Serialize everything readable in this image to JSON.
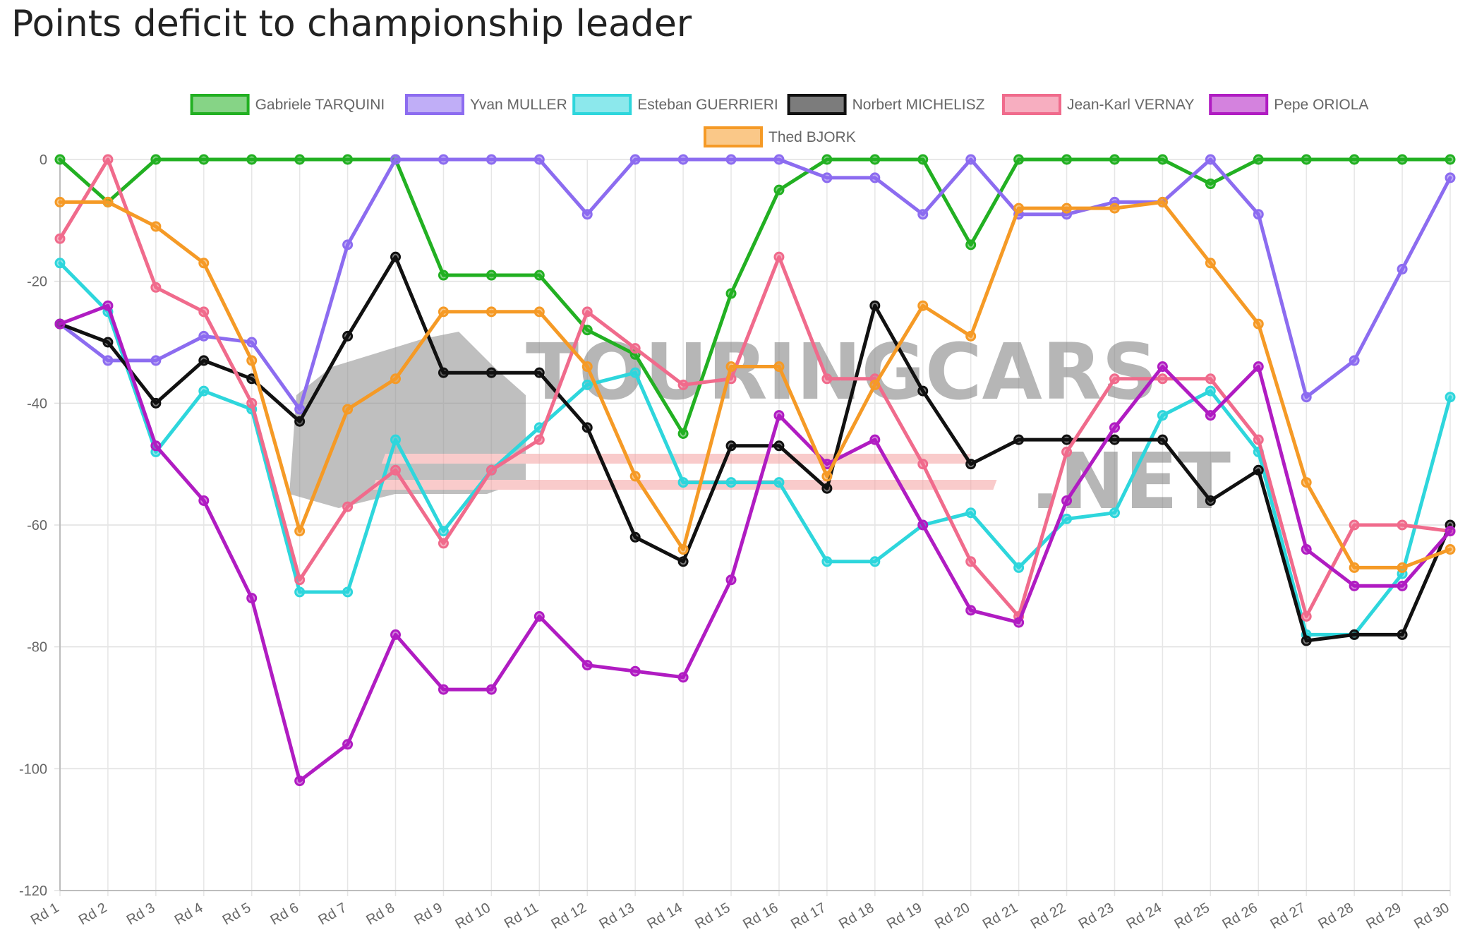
{
  "title": "Points deficit to championship leader",
  "watermark": {
    "line1": "TOURINGCARS",
    "line2": ".NET"
  },
  "chart_data": {
    "type": "line",
    "categories": [
      "Rd 1",
      "Rd 2",
      "Rd 3",
      "Rd 4",
      "Rd 5",
      "Rd 6",
      "Rd 7",
      "Rd 8",
      "Rd 9",
      "Rd 10",
      "Rd 11",
      "Rd 12",
      "Rd 13",
      "Rd 14",
      "Rd 15",
      "Rd 16",
      "Rd 17",
      "Rd 18",
      "Rd 19",
      "Rd 20",
      "Rd 21",
      "Rd 22",
      "Rd 23",
      "Rd 24",
      "Rd 25",
      "Rd 26",
      "Rd 27",
      "Rd 28",
      "Rd 29",
      "Rd 30"
    ],
    "ylim": [
      -120,
      0
    ],
    "yticks": [
      0,
      -20,
      -40,
      -60,
      -80,
      -100,
      -120
    ],
    "grid": true,
    "legend_position": "top",
    "series": [
      {
        "name": "Gabriele TARQUINI",
        "color": "#22b022",
        "values": [
          0,
          -7,
          0,
          0,
          0,
          0,
          0,
          0,
          -19,
          -19,
          -19,
          -28,
          -32,
          -45,
          -22,
          -5,
          0,
          0,
          0,
          -14,
          0,
          0,
          0,
          0,
          -4,
          0,
          0,
          0,
          0,
          0
        ]
      },
      {
        "name": "Yvan MULLER",
        "color": "#8c6cf0",
        "values": [
          -27,
          -33,
          -33,
          -29,
          -30,
          -41,
          -14,
          0,
          0,
          0,
          0,
          -9,
          0,
          0,
          0,
          0,
          -3,
          -3,
          -9,
          0,
          -9,
          -9,
          -7,
          -7,
          0,
          -9,
          -39,
          -33,
          -18,
          -3
        ]
      },
      {
        "name": "Esteban GUERRIERI",
        "color": "#2ed6dc",
        "values": [
          -17,
          -25,
          -48,
          -38,
          -41,
          -71,
          -71,
          -46,
          -61,
          -51,
          -44,
          -37,
          -35,
          -53,
          -53,
          -53,
          -66,
          -66,
          -60,
          -58,
          -67,
          -59,
          -58,
          -42,
          -38,
          -48,
          -78,
          -78,
          -68,
          -39
        ]
      },
      {
        "name": "Norbert MICHELISZ",
        "color": "#111111",
        "values": [
          -27,
          -30,
          -40,
          -33,
          -36,
          -43,
          -29,
          -16,
          -35,
          -35,
          -35,
          -44,
          -62,
          -66,
          -47,
          -47,
          -54,
          -24,
          -38,
          -50,
          -46,
          -46,
          -46,
          -46,
          -56,
          -51,
          -79,
          -78,
          -78,
          -60
        ]
      },
      {
        "name": "Jean-Karl VERNAY",
        "color": "#f06b8c",
        "values": [
          -13,
          0,
          -21,
          -25,
          -40,
          -69,
          -57,
          -51,
          -63,
          -51,
          -46,
          -25,
          -31,
          -37,
          -36,
          -16,
          -36,
          -36,
          -50,
          -66,
          -75,
          -48,
          -36,
          -36,
          -36,
          -46,
          -75,
          -60,
          -60,
          -61
        ]
      },
      {
        "name": "Pepe ORIOLA",
        "color": "#b01cc2",
        "values": [
          -27,
          -24,
          -47,
          -56,
          -72,
          -102,
          -96,
          -78,
          -87,
          -87,
          -75,
          -83,
          -84,
          -85,
          -69,
          -42,
          -50,
          -46,
          -60,
          -74,
          -76,
          -56,
          -44,
          -34,
          -42,
          -34,
          -64,
          -70,
          -70,
          -61
        ]
      },
      {
        "name": "Thed BJORK",
        "color": "#f59a26",
        "values": [
          -7,
          -7,
          -11,
          -17,
          -33,
          -61,
          -41,
          -36,
          -25,
          -25,
          -25,
          -34,
          -52,
          -64,
          -34,
          -34,
          -52,
          -37,
          -24,
          -29,
          -8,
          -8,
          -8,
          -7,
          -17,
          -27,
          -53,
          -67,
          -67,
          -64
        ]
      }
    ]
  }
}
